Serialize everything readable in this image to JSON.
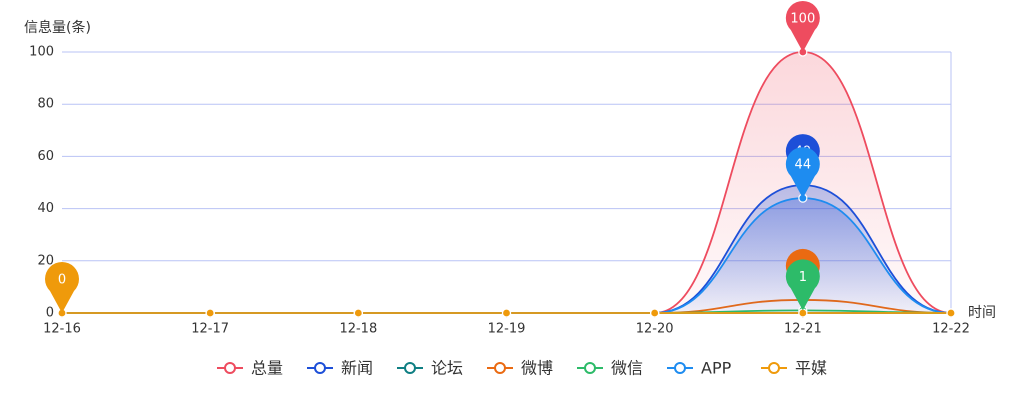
{
  "chart_data": {
    "type": "line",
    "y_label": "信息量(条)",
    "x_label": "时间",
    "categories": [
      "12-16",
      "12-17",
      "12-18",
      "12-19",
      "12-20",
      "12-21",
      "12-22"
    ],
    "series": [
      {
        "name": "总量",
        "color": "#ee4c5f",
        "area": true,
        "values": [
          0,
          0,
          0,
          0,
          0,
          100,
          0
        ]
      },
      {
        "name": "新闻",
        "color": "#1d4fd8",
        "area": true,
        "values": [
          0,
          0,
          0,
          0,
          0,
          49,
          0
        ]
      },
      {
        "name": "论坛",
        "color": "#0f7f83",
        "area": false,
        "values": [
          0,
          0,
          0,
          0,
          0,
          0,
          0
        ]
      },
      {
        "name": "微博",
        "color": "#ea6a12",
        "area": false,
        "values": [
          0,
          0,
          0,
          0,
          0,
          5,
          0
        ]
      },
      {
        "name": "微信",
        "color": "#2dbb69",
        "area": false,
        "values": [
          0,
          0,
          0,
          0,
          0,
          1,
          0
        ]
      },
      {
        "name": "APP",
        "color": "#1e8cf0",
        "area": true,
        "values": [
          0,
          0,
          0,
          0,
          0,
          44,
          0
        ]
      },
      {
        "name": "平媒",
        "color": "#ef9a0b",
        "area": false,
        "values": [
          0,
          0,
          0,
          0,
          0,
          0,
          0
        ]
      }
    ],
    "ylim": [
      0,
      100
    ],
    "yticks": [
      0,
      20,
      40,
      60,
      80,
      100
    ],
    "grid": true,
    "legend": "bottom"
  }
}
